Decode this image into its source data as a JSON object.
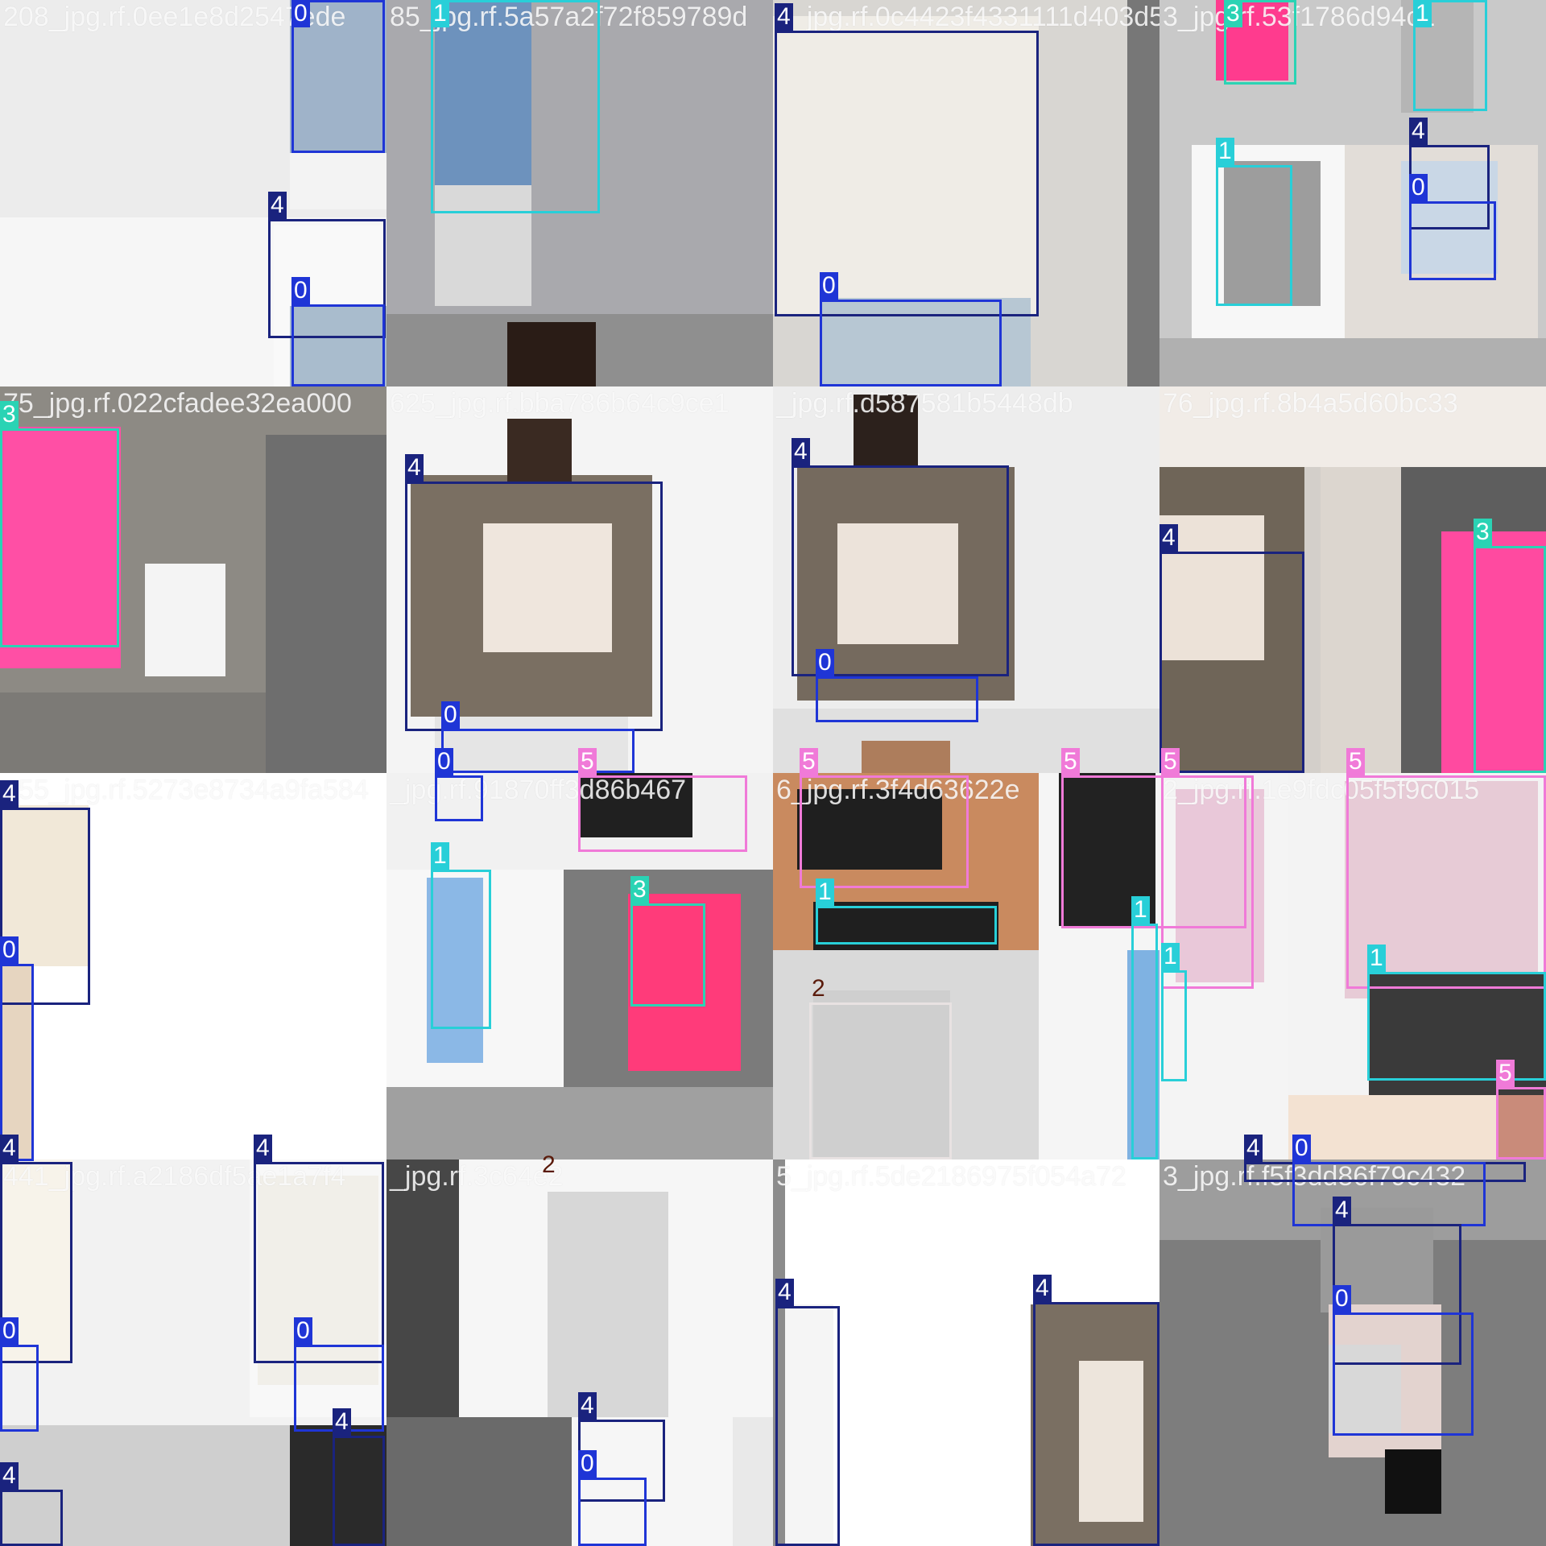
{
  "class_colors": {
    "0": "#1f35d6",
    "1": "#28cfd8",
    "2": "#e8e2e2",
    "3": "#2ad3b4",
    "4": "#1a237e",
    "5": "#f07ad8"
  },
  "label_text_colors": {
    "2": "#5a1a0a"
  },
  "tiles": [
    {
      "name": "208_jpg.rf.0ee1e8d2547ede",
      "bg": "#ececec"
    },
    {
      "name": "85_jpg.rf.5a57a2f72f859789d",
      "bg": "#a9a9ad"
    },
    {
      "name": "3_jpg.rf.0c4423f4331111d403d5",
      "bg": "#d8d6d2"
    },
    {
      "name": "3_jpg.rf.53f1786d94c1",
      "bg": "#c9c9c9"
    },
    {
      "name": "75_jpg.rf.022cfadee32ea000",
      "bg": "#8d8a84"
    },
    {
      "name": "625_jpg.rf.bba786b64c9ce1",
      "bg": "#f4f4f4"
    },
    {
      "name": "_jpg.rf.d587581b5448db",
      "bg": "#ededed"
    },
    {
      "name": "76_jpg.rf.8b4a5d60bc33",
      "bg": "#d3cfca"
    },
    {
      "name": "455_jpg.rf.5273e8734a9fa584",
      "bg": "#ffffff"
    },
    {
      "name": "_jpg.rf.91870ff3d86b467",
      "bg": "#9f9f9f"
    },
    {
      "name": "6_jpg.rf.3f4d63622e",
      "bg": "#e7e5e3"
    },
    {
      "name": "2_jpg.rf.1e9fdc05f5f9c015",
      "bg": "#efe9eb"
    },
    {
      "name": "441_jpg.rf.a2186df5ae1a7f4",
      "bg": "#f2f2f2"
    },
    {
      "name": "_jpg.rf.3c64e2",
      "bg": "#e9e9e9"
    },
    {
      "name": "5_jpg.rf.5de2186975f054a72",
      "bg": "#ffffff"
    },
    {
      "name": "3_jpg.rf.f5f3dd86f79c432",
      "bg": "#9c9c9c"
    }
  ],
  "detections": [
    {
      "cls": "0"
    },
    {
      "cls": "4"
    },
    {
      "cls": "0"
    },
    {
      "cls": "1"
    },
    {
      "cls": "4"
    },
    {
      "cls": "0"
    },
    {
      "cls": "3"
    },
    {
      "cls": "1"
    },
    {
      "cls": "1"
    },
    {
      "cls": "4"
    },
    {
      "cls": "0"
    },
    {
      "cls": "3"
    },
    {
      "cls": "4"
    },
    {
      "cls": "0"
    },
    {
      "cls": "0"
    },
    {
      "cls": "5"
    },
    {
      "cls": "4"
    },
    {
      "cls": "0"
    },
    {
      "cls": "4"
    },
    {
      "cls": "3"
    },
    {
      "cls": "5"
    },
    {
      "cls": "5"
    },
    {
      "cls": "5"
    },
    {
      "cls": "5"
    },
    {
      "cls": "4"
    },
    {
      "cls": "0"
    },
    {
      "cls": "1"
    },
    {
      "cls": "3"
    },
    {
      "cls": "1"
    },
    {
      "cls": "2"
    },
    {
      "cls": "1"
    },
    {
      "cls": "1"
    },
    {
      "cls": "1"
    },
    {
      "cls": "5"
    },
    {
      "cls": "4"
    },
    {
      "cls": "0"
    },
    {
      "cls": "4"
    },
    {
      "cls": "0"
    },
    {
      "cls": "4"
    },
    {
      "cls": "4"
    },
    {
      "cls": "2"
    },
    {
      "cls": "4"
    },
    {
      "cls": "0"
    },
    {
      "cls": "4"
    },
    {
      "cls": "4"
    },
    {
      "cls": "4"
    },
    {
      "cls": "0"
    },
    {
      "cls": "4"
    },
    {
      "cls": "0"
    }
  ]
}
